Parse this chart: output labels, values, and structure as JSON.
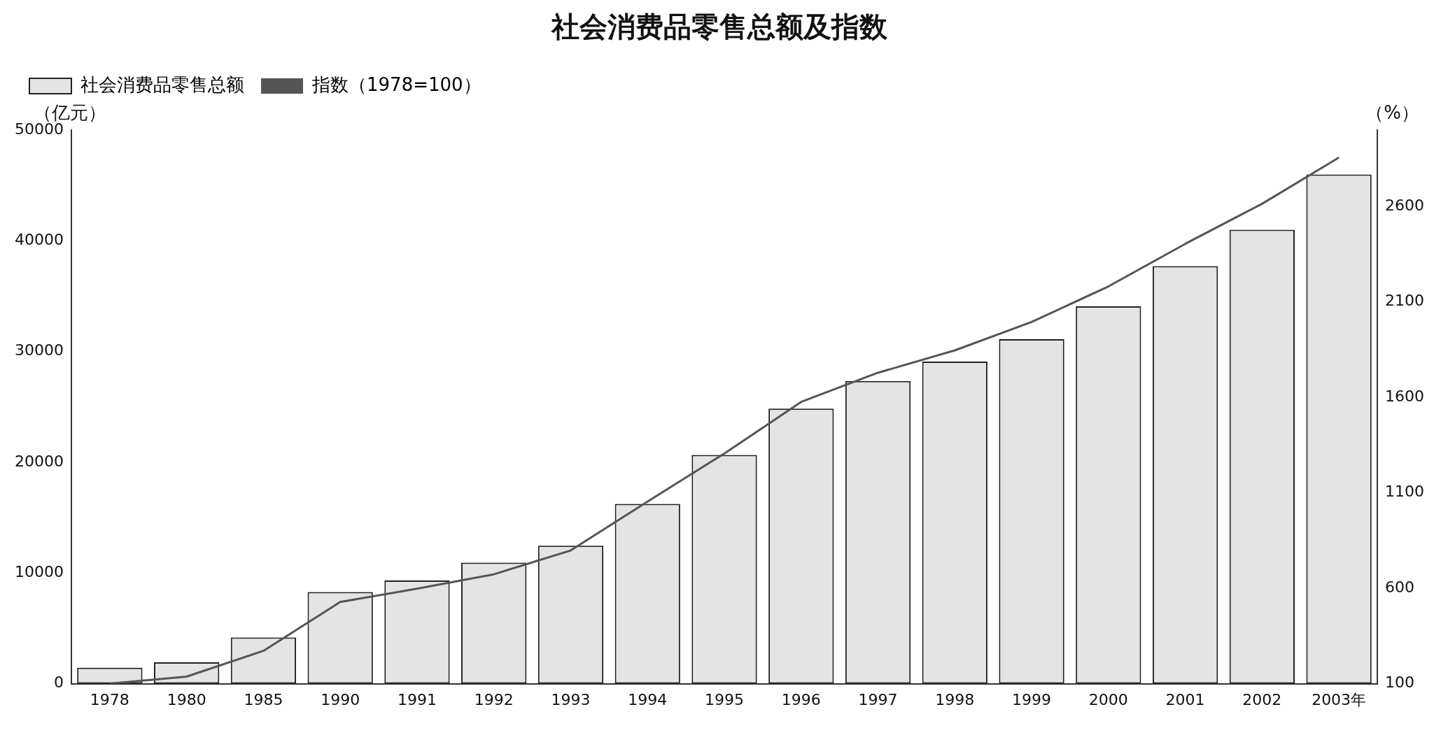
{
  "chart_data": {
    "type": "bar",
    "title": "社会消费品零售总额及指数",
    "ylabel": "（亿元）",
    "y2label": "（%）",
    "categories": [
      "1978",
      "1980",
      "1985",
      "1990",
      "1991",
      "1992",
      "1993",
      "1994",
      "1995",
      "1996",
      "1997",
      "1998",
      "1999",
      "2000",
      "2001",
      "2002",
      "2003年"
    ],
    "series": [
      {
        "name": "社会消费品零售总额",
        "color": "#e4e4e4",
        "values": [
          1450,
          1930,
          4180,
          8280,
          9330,
          10930,
          12460,
          16240,
          20660,
          24840,
          27340,
          29100,
          31110,
          34090,
          37710,
          41000,
          45990
        ]
      },
      {
        "name": "指数（1978=100）",
        "type": "line",
        "axis": "y2",
        "color": "#555555",
        "values": [
          100,
          137,
          272,
          528,
          598,
          673,
          798,
          1054,
          1306,
          1576,
          1729,
          1846,
          1995,
          2181,
          2404,
          2614,
          2856
        ]
      }
    ],
    "ylim": [
      0,
      50000
    ],
    "yticks": [
      0,
      10000,
      20000,
      30000,
      40000,
      50000
    ],
    "y2lim": [
      100,
      3000
    ],
    "y2ticks": [
      100,
      600,
      1100,
      1600,
      2100,
      2600
    ],
    "legend": "top left",
    "grid": false,
    "marker": "none",
    "line_style": "solid"
  }
}
